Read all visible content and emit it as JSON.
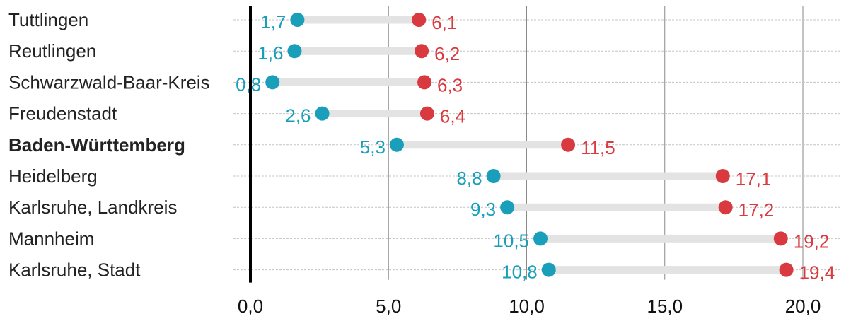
{
  "chart_data": {
    "type": "dumbbell",
    "xlim": [
      0,
      20
    ],
    "x_ticks": [
      {
        "value": 0,
        "label": "0,0"
      },
      {
        "value": 5,
        "label": "5,0"
      },
      {
        "value": 10,
        "label": "10,0"
      },
      {
        "value": 15,
        "label": "15,0"
      },
      {
        "value": 20,
        "label": "20,0"
      }
    ],
    "colors": {
      "start": "#1a9fba",
      "end": "#d93a3f",
      "connector": "#e3e3e3"
    },
    "series": [
      {
        "name": "start",
        "color": "#1a9fba"
      },
      {
        "name": "end",
        "color": "#d93a3f"
      }
    ],
    "rows": [
      {
        "label": "Tuttlingen",
        "start": 1.7,
        "start_label": "1,7",
        "end": 6.1,
        "end_label": "6,1",
        "bold": false
      },
      {
        "label": "Reutlingen",
        "start": 1.6,
        "start_label": "1,6",
        "end": 6.2,
        "end_label": "6,2",
        "bold": false
      },
      {
        "label": "Schwarzwald-Baar-Kreis",
        "start": 0.8,
        "start_label": "0,8",
        "end": 6.3,
        "end_label": "6,3",
        "bold": false
      },
      {
        "label": "Freudenstadt",
        "start": 2.6,
        "start_label": "2,6",
        "end": 6.4,
        "end_label": "6,4",
        "bold": false
      },
      {
        "label": "Baden-Württemberg",
        "start": 5.3,
        "start_label": "5,3",
        "end": 11.5,
        "end_label": "11,5",
        "bold": true
      },
      {
        "label": "Heidelberg",
        "start": 8.8,
        "start_label": "8,8",
        "end": 17.1,
        "end_label": "17,1",
        "bold": false
      },
      {
        "label": "Karlsruhe, Landkreis",
        "start": 9.3,
        "start_label": "9,3",
        "end": 17.2,
        "end_label": "17,2",
        "bold": false
      },
      {
        "label": "Mannheim",
        "start": 10.5,
        "start_label": "10,5",
        "end": 19.2,
        "end_label": "19,2",
        "bold": false
      },
      {
        "label": "Karlsruhe, Stadt",
        "start": 10.8,
        "start_label": "10,8",
        "end": 19.4,
        "end_label": "19,4",
        "bold": false
      }
    ]
  }
}
